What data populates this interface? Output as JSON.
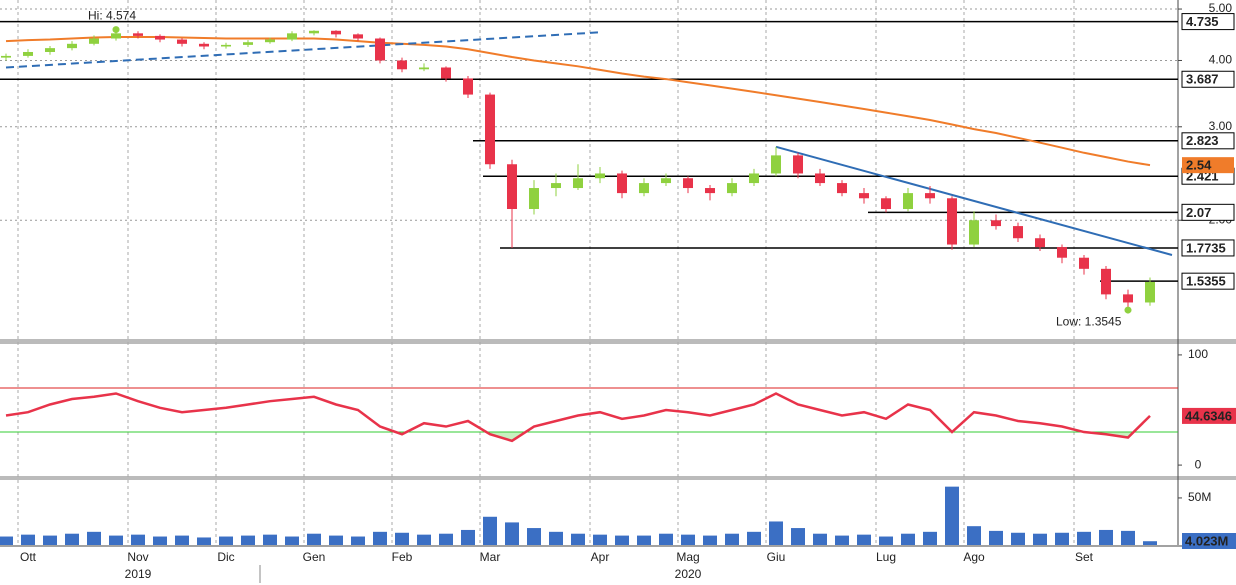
{
  "chart_data": [
    {
      "type": "candlestick",
      "categories": [
        null,
        "Ott",
        null,
        null,
        null,
        null,
        "Nov",
        null,
        null,
        null,
        "Dic",
        null,
        null,
        null,
        "Gen",
        null,
        null,
        null,
        "Feb",
        null,
        null,
        null,
        "Mar",
        null,
        null,
        null,
        null,
        "Apr",
        null,
        null,
        null,
        "Mag",
        null,
        null,
        null,
        "Giu",
        null,
        null,
        null,
        null,
        "Lug",
        null,
        null,
        null,
        "Ago",
        null,
        null,
        null,
        null,
        "Set",
        null,
        null,
        null
      ],
      "year_categories": [
        null,
        null,
        null,
        null,
        null,
        null,
        "2019",
        null,
        null,
        null,
        null,
        null,
        null,
        null,
        null,
        null,
        null,
        null,
        null,
        null,
        null,
        null,
        null,
        null,
        null,
        null,
        null,
        null,
        null,
        null,
        null,
        "2020",
        null,
        null,
        null,
        null,
        null,
        null,
        null,
        null,
        null,
        null,
        null,
        null,
        null,
        null,
        null,
        null,
        null,
        null,
        null,
        null,
        null
      ],
      "open": [
        4.05,
        4.08,
        4.15,
        4.22,
        4.3,
        4.4,
        4.5,
        4.45,
        4.38,
        4.3,
        4.25,
        4.28,
        4.33,
        4.38,
        4.5,
        4.55,
        4.48,
        4.4,
        4.0,
        3.85,
        3.88,
        3.7,
        3.45,
        2.55,
        2.1,
        2.3,
        2.3,
        2.4,
        2.45,
        2.25,
        2.35,
        2.4,
        2.3,
        2.25,
        2.35,
        2.45,
        2.65,
        2.45,
        2.35,
        2.25,
        2.2,
        2.1,
        2.25,
        2.2,
        1.8,
        2.0,
        1.95,
        1.85,
        1.78,
        1.7,
        1.62,
        1.45,
        1.4
      ],
      "high": [
        4.12,
        4.2,
        4.26,
        4.35,
        4.46,
        4.574,
        4.54,
        4.48,
        4.41,
        4.33,
        4.32,
        4.37,
        4.42,
        4.54,
        4.56,
        4.56,
        4.5,
        4.42,
        4.05,
        3.95,
        3.9,
        3.74,
        3.48,
        2.6,
        2.38,
        2.45,
        2.55,
        2.52,
        2.48,
        2.4,
        2.45,
        2.42,
        2.33,
        2.4,
        2.5,
        2.75,
        2.68,
        2.5,
        2.38,
        2.3,
        2.22,
        2.3,
        2.32,
        2.22,
        2.08,
        2.05,
        1.98,
        1.88,
        1.8,
        1.72,
        1.64,
        1.48,
        1.56
      ],
      "low": [
        4.0,
        4.05,
        4.1,
        4.18,
        4.27,
        4.36,
        4.4,
        4.33,
        4.25,
        4.2,
        4.21,
        4.24,
        4.3,
        4.35,
        4.46,
        4.42,
        4.35,
        3.95,
        3.8,
        3.82,
        3.65,
        3.4,
        2.5,
        1.7735,
        2.05,
        2.22,
        2.28,
        2.35,
        2.2,
        2.22,
        2.32,
        2.25,
        2.18,
        2.22,
        2.32,
        2.42,
        2.4,
        2.32,
        2.22,
        2.15,
        2.07,
        2.08,
        2.15,
        1.76,
        1.78,
        1.92,
        1.82,
        1.75,
        1.66,
        1.58,
        1.42,
        1.3545,
        1.38
      ],
      "close": [
        4.08,
        4.15,
        4.22,
        4.3,
        4.4,
        4.5,
        4.45,
        4.38,
        4.3,
        4.25,
        4.28,
        4.33,
        4.38,
        4.5,
        4.55,
        4.48,
        4.4,
        4.0,
        3.85,
        3.88,
        3.7,
        3.45,
        2.55,
        2.1,
        2.3,
        2.35,
        2.4,
        2.45,
        2.25,
        2.35,
        2.4,
        2.3,
        2.25,
        2.35,
        2.45,
        2.65,
        2.45,
        2.35,
        2.25,
        2.2,
        2.1,
        2.25,
        2.2,
        1.8,
        2.0,
        1.95,
        1.85,
        1.78,
        1.7,
        1.62,
        1.45,
        1.4,
        1.53
      ],
      "up_color": "#8fd13f",
      "down_color": "#e8334a",
      "log_scale": true,
      "grid": true,
      "ylim": [
        1.2,
        5.2
      ],
      "yticks": [
        {
          "value": 2,
          "label": "2.00"
        },
        {
          "value": 3,
          "label": "3.00"
        },
        {
          "value": 4,
          "label": "4.00"
        },
        {
          "value": 5,
          "label": "5.00"
        }
      ],
      "moving_average": {
        "color": "#f07c2a",
        "values": [
          4.35,
          4.37,
          4.38,
          4.4,
          4.42,
          4.43,
          4.43,
          4.43,
          4.42,
          4.41,
          4.4,
          4.4,
          4.4,
          4.4,
          4.4,
          4.38,
          4.35,
          4.32,
          4.3,
          4.28,
          4.25,
          4.2,
          4.13,
          4.06,
          4.0,
          3.95,
          3.9,
          3.84,
          3.78,
          3.73,
          3.69,
          3.64,
          3.59,
          3.54,
          3.49,
          3.44,
          3.39,
          3.34,
          3.29,
          3.24,
          3.19,
          3.14,
          3.09,
          3.03,
          2.97,
          2.92,
          2.86,
          2.8,
          2.74,
          2.68,
          2.63,
          2.58,
          2.54
        ]
      },
      "levels": [
        4.735,
        3.687,
        2.823,
        2.421,
        2.07,
        1.7735,
        1.5355
      ],
      "trendlines": [
        {
          "color": "#2f6db5",
          "dashed": true,
          "start": [
            0,
            3.88
          ],
          "end": [
            27,
            4.52
          ]
        },
        {
          "color": "#2f6db5",
          "dashed": false,
          "start": [
            35,
            2.75
          ],
          "end": [
            53,
            1.72
          ]
        }
      ],
      "annotations": [
        {
          "text": "Hi: 4.574",
          "index": 5,
          "value": 4.574
        },
        {
          "text": "Low: 1.3545",
          "index": 51,
          "value": 1.3545
        }
      ]
    },
    {
      "type": "line",
      "color": "#e8334a",
      "values": [
        45,
        48,
        55,
        60,
        62,
        65,
        58,
        52,
        48,
        50,
        52,
        55,
        58,
        60,
        62,
        55,
        50,
        35,
        28,
        38,
        35,
        40,
        28,
        22,
        35,
        40,
        45,
        48,
        42,
        45,
        50,
        48,
        45,
        50,
        55,
        65,
        55,
        50,
        45,
        48,
        42,
        55,
        50,
        30,
        48,
        45,
        40,
        38,
        35,
        30,
        28,
        25,
        44.6346
      ],
      "ylim": [
        -9,
        109
      ],
      "yticks": [
        0,
        100
      ],
      "upper_band": 70,
      "lower_band": 30,
      "upper_color": "#d22",
      "lower_color": "#3c3",
      "fill_color": "#c8f0c0"
    },
    {
      "type": "bar",
      "color": "#3b6fc4",
      "values": [
        9000000,
        11000000,
        10000000,
        12000000,
        14000000,
        10000000,
        11000000,
        9000000,
        10000000,
        8000000,
        9000000,
        10000000,
        11000000,
        9000000,
        12000000,
        10000000,
        9000000,
        14000000,
        13000000,
        11000000,
        12000000,
        16000000,
        30000000,
        24000000,
        18000000,
        14000000,
        12000000,
        11000000,
        10000000,
        10000000,
        12000000,
        11000000,
        10000000,
        12000000,
        14000000,
        25000000,
        18000000,
        12000000,
        10000000,
        11000000,
        9000000,
        12000000,
        14000000,
        62000000,
        20000000,
        15000000,
        13000000,
        12000000,
        13000000,
        14000000,
        16000000,
        15000000,
        4023000
      ],
      "value_labels": [
        null,
        null,
        null,
        null,
        null,
        null,
        null,
        null,
        null,
        null,
        null,
        null,
        null,
        null,
        null,
        null,
        null,
        null,
        null,
        null,
        null,
        null,
        null,
        null,
        null,
        null,
        null,
        null,
        null,
        null,
        null,
        null,
        null,
        null,
        null,
        null,
        null,
        null,
        null,
        null,
        null,
        null,
        null,
        null,
        null,
        null,
        null,
        null,
        null,
        null,
        null,
        null,
        "4.023M"
      ],
      "ylim": [
        0,
        68000000
      ],
      "yticks": [
        {
          "value": 50000000,
          "label": "50M"
        }
      ]
    }
  ]
}
